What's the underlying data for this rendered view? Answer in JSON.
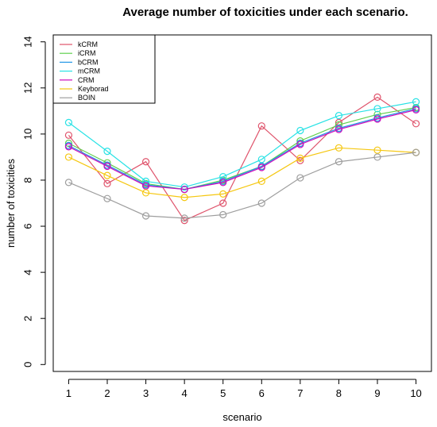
{
  "chart_data": {
    "type": "line",
    "title": "Average number of toxicities under each scenario.",
    "xlabel": "scenario",
    "ylabel": "number of toxicities",
    "x": [
      1,
      2,
      3,
      4,
      5,
      6,
      7,
      8,
      9,
      10
    ],
    "xlim": [
      0.6,
      10.4
    ],
    "ylim": [
      -0.3,
      14.3
    ],
    "yticks": [
      0,
      2,
      4,
      6,
      8,
      10,
      12,
      14
    ],
    "grid": false,
    "legend_position": "top-left",
    "series": [
      {
        "name": "kCRM",
        "color": "#df536b",
        "values": [
          9.95,
          7.85,
          8.8,
          6.25,
          7.0,
          10.35,
          8.85,
          10.5,
          11.6,
          10.45
        ]
      },
      {
        "name": "iCRM",
        "color": "#61d04f",
        "values": [
          9.6,
          8.75,
          7.85,
          7.6,
          8.0,
          8.6,
          9.7,
          10.4,
          10.85,
          11.15
        ]
      },
      {
        "name": "bCRM",
        "color": "#2297e6",
        "values": [
          9.5,
          8.65,
          7.8,
          7.6,
          7.95,
          8.6,
          9.6,
          10.25,
          10.7,
          11.1
        ]
      },
      {
        "name": "mCRM",
        "color": "#28e2e5",
        "values": [
          10.5,
          9.25,
          7.95,
          7.7,
          8.15,
          8.9,
          10.15,
          10.8,
          11.1,
          11.4
        ]
      },
      {
        "name": "CRM",
        "color": "#cd0bbc",
        "values": [
          9.45,
          8.6,
          7.75,
          7.6,
          7.9,
          8.55,
          9.55,
          10.2,
          10.65,
          11.05
        ]
      },
      {
        "name": "Keyborad",
        "color": "#f5c710",
        "values": [
          9.0,
          8.2,
          7.45,
          7.25,
          7.4,
          7.95,
          8.95,
          9.4,
          9.3,
          9.2
        ]
      },
      {
        "name": "BOIN",
        "color": "#9e9e9e",
        "values": [
          7.9,
          7.2,
          6.45,
          6.35,
          6.5,
          7.0,
          8.1,
          8.8,
          9.0,
          9.2
        ]
      }
    ]
  }
}
